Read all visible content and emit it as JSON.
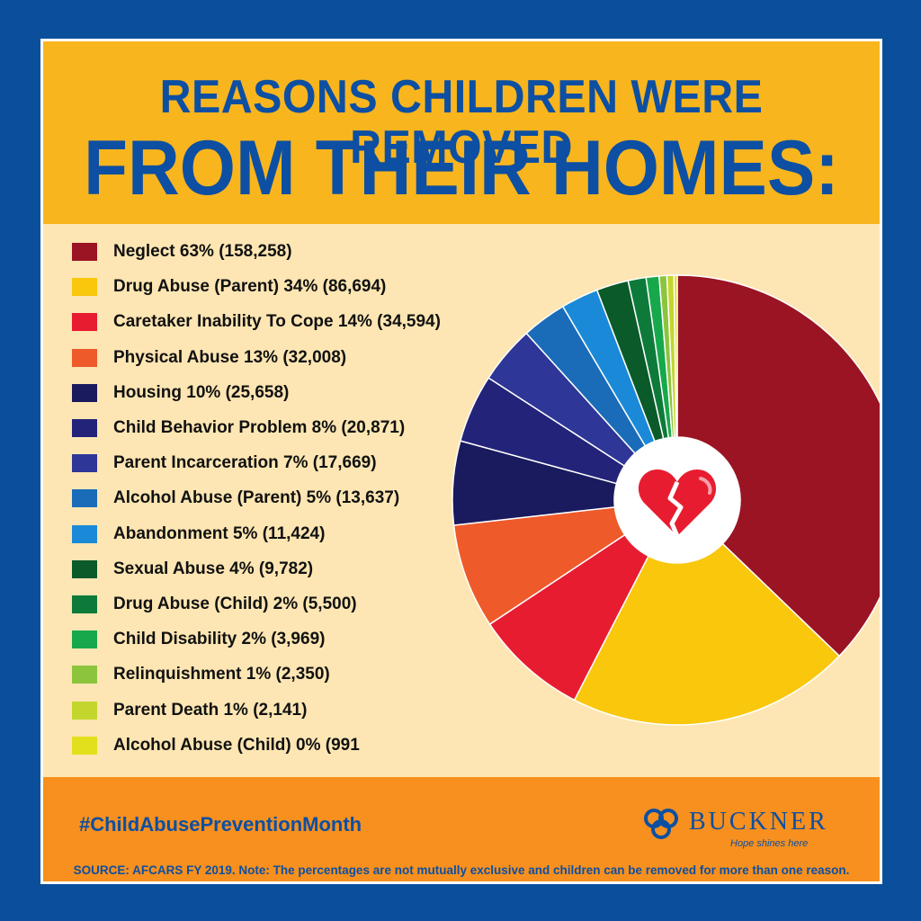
{
  "title": {
    "line1": "REASONS CHILDREN WERE REMOVED",
    "line2": "FROM THEIR HOMES:"
  },
  "legend": [
    {
      "label": "Neglect 63% (158,258)",
      "color": "#9a1424"
    },
    {
      "label": "Drug Abuse (Parent) 34% (86,694)",
      "color": "#f9c70c"
    },
    {
      "label": "Caretaker Inability To Cope 14% (34,594)",
      "color": "#e81c30"
    },
    {
      "label": "Physical Abuse 13% (32,008)",
      "color": "#ee5a2a"
    },
    {
      "label": "Housing 10% (25,658)",
      "color": "#1a1a5e"
    },
    {
      "label": "Child Behavior Problem 8% (20,871)",
      "color": "#23237a"
    },
    {
      "label": "Parent Incarceration 7% (17,669)",
      "color": "#2e3697"
    },
    {
      "label": "Alcohol Abuse (Parent) 5% (13,637)",
      "color": "#1a6cb8"
    },
    {
      "label": "Abandonment 5% (11,424)",
      "color": "#1a8ad8"
    },
    {
      "label": "Sexual Abuse 4% (9,782)",
      "color": "#0b5a2a"
    },
    {
      "label": "Drug Abuse (Child) 2% (5,500)",
      "color": "#0e7a3a"
    },
    {
      "label": "Child Disability 2% (3,969)",
      "color": "#17a84c"
    },
    {
      "label": "Relinquishment 1% (2,350)",
      "color": "#8cc43c"
    },
    {
      "label": "Parent Death 1% (2,141)",
      "color": "#c3d62e"
    },
    {
      "label": "Alcohol Abuse (Child) 0% (991",
      "color": "#e2e01c"
    }
  ],
  "chart_data": {
    "type": "pie",
    "subtype": "donut",
    "categories": [
      "Neglect",
      "Drug Abuse (Parent)",
      "Caretaker Inability To Cope",
      "Physical Abuse",
      "Housing",
      "Child Behavior Problem",
      "Parent Incarceration",
      "Alcohol Abuse (Parent)",
      "Abandonment",
      "Sexual Abuse",
      "Drug Abuse (Child)",
      "Child Disability",
      "Relinquishment",
      "Parent Death",
      "Alcohol Abuse (Child)"
    ],
    "values": [
      158258,
      86694,
      34594,
      32008,
      25658,
      20871,
      17669,
      13637,
      11424,
      9782,
      5500,
      3969,
      2350,
      2141,
      991
    ],
    "percent": [
      63,
      34,
      14,
      13,
      10,
      8,
      7,
      5,
      5,
      4,
      2,
      2,
      1,
      1,
      0
    ],
    "center_icon": "broken-heart-icon",
    "legend_position": "left"
  },
  "footer": {
    "hashtag": "#ChildAbusePreventionMonth",
    "logo_name": "BUCKNER",
    "logo_tagline": "Hope shines here",
    "source": "SOURCE: AFCARS FY 2019. Note: The percentages are not mutually exclusive and children can be removed for more than one reason."
  }
}
